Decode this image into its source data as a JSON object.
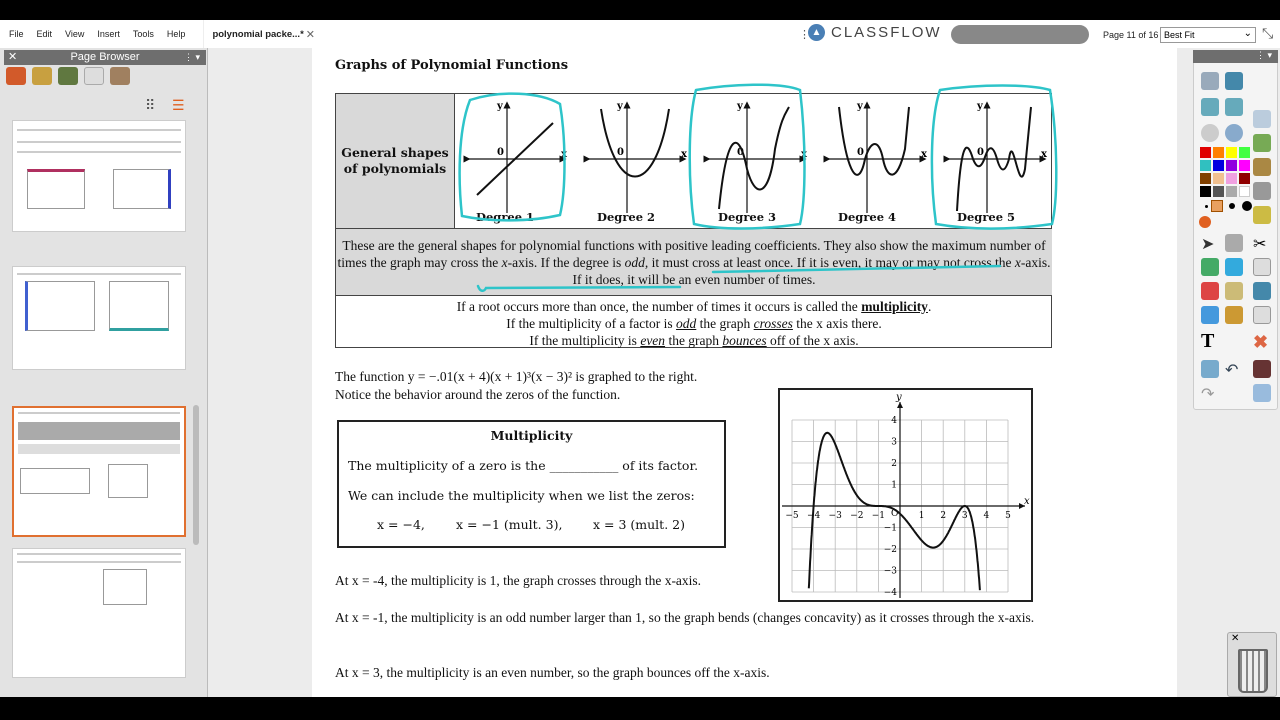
{
  "menu": [
    "File",
    "Edit",
    "View",
    "Insert",
    "Tools",
    "Help"
  ],
  "tab": {
    "label": "polynomial packe...*",
    "close": "✕"
  },
  "brand": "CLASSFLOW",
  "page_indicator": "Page 11 of 16",
  "zoom_select": "Best Fit",
  "page_browser": {
    "title": "Page Browser",
    "close": "✕",
    "menu": "⋮ ▾"
  },
  "toolbar": {
    "menu": "⋮ ▾",
    "colors": [
      "#e00000",
      "#ff8000",
      "#ffff00",
      "#40ff40",
      "#30c0c0",
      "#0000e0",
      "#9000e0",
      "#ff00ff",
      "#804000",
      "#f0c090",
      "#f0a0e0",
      "#900000",
      "#000000",
      "#555555",
      "#aaaaaa",
      "#ffffff"
    ],
    "pen_color": "#e06020"
  },
  "document": {
    "title": "Graphs of Polynomial Functions",
    "shapes_label": "General shapes of polynomials",
    "degrees": [
      "Degree 1",
      "Degree 2",
      "Degree 3",
      "Degree 4",
      "Degree 5"
    ],
    "axis_y": "y",
    "axis_x": "x",
    "origin": "0",
    "desc": [
      "These are the general shapes for polynomial functions with positive leading coefficients. They also show the maximum number of times the graph may cross the ",
      "x",
      "-axis. If the degree is ",
      "odd,",
      " it must cross at least once. If it is even, it may or may not cross the ",
      "x",
      "-axis. If it does, it will be an even number of times."
    ],
    "mult_lines": [
      {
        "pre": "If a root occurs more than once, the number of times it occurs is called the ",
        "em": "multiplicity",
        "post": "."
      },
      {
        "pre": "If the multiplicity of a factor is ",
        "em": "odd",
        "post": " the graph ",
        "em2": "crosses",
        "post2": " the x axis there."
      },
      {
        "pre": "If the multiplicity is ",
        "em": "even",
        "post": " the graph ",
        "em2": "bounces",
        "post2": " off of the x axis."
      }
    ],
    "function_line1": "The function y = −.01(x + 4)(x + 1)³(x − 3)² is graphed to the right.",
    "function_line2": "Notice the behavior around the zeros of the function.",
    "box": {
      "title": "Multiplicity",
      "line1": "The multiplicity of a zero is the ___________ of its factor.",
      "line2": "We can include the multiplicity when we list the zeros:",
      "zeros": [
        "x = −4,",
        "x = −1 (mult. 3),",
        "x = 3 (mult. 2)"
      ]
    },
    "notes": [
      "At x = -4, the multiplicity is 1, the graph crosses through the x-axis.",
      "At x = -1, the multiplicity is an odd number larger than 1, so the graph bends (changes concavity) as it crosses through the x-axis.",
      "At x = 3, the multiplicity is an even number, so the graph bounces off the x-axis."
    ],
    "annotation_color": "#2ec4c9"
  },
  "chart_data": {
    "type": "line",
    "function": "y = -0.01(x+4)(x+1)^3(x-3)^2",
    "xlabel": "x",
    "ylabel": "y",
    "xlim": [
      -5,
      5
    ],
    "ylim": [
      -4,
      4
    ],
    "xticks": [
      -5,
      -4,
      -3,
      -2,
      -1,
      1,
      2,
      3,
      4,
      5
    ],
    "yticks": [
      -4,
      -3,
      -2,
      -1,
      1,
      2,
      3,
      4
    ],
    "origin_label": "O",
    "grid": true,
    "zeros": [
      {
        "x": -4,
        "mult": 1
      },
      {
        "x": -1,
        "mult": 3
      },
      {
        "x": 3,
        "mult": 2
      }
    ]
  }
}
